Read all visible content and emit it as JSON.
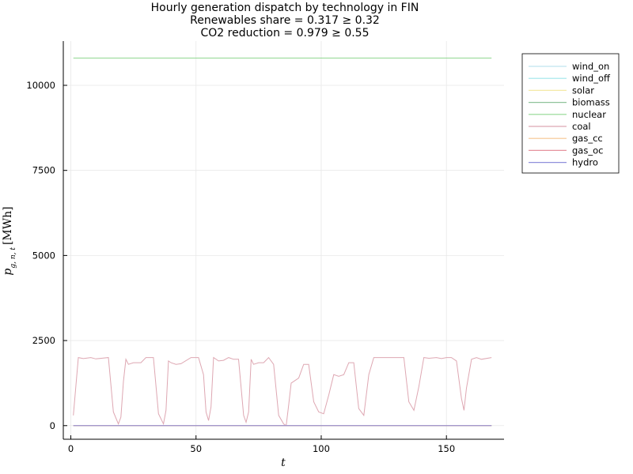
{
  "chart_data": {
    "type": "line",
    "title": "Hourly generation dispatch by technology in FIN",
    "subtitle_lines": [
      "Renewables share = 0.317 ≥ 0.32",
      "CO2 reduction = 0.979 ≥ 0.55"
    ],
    "xlabel": "t",
    "ylabel": {
      "symbol": "p",
      "subscript": "g, n, t",
      "unit": "[MWh]"
    },
    "xlim": [
      -3,
      173
    ],
    "ylim": [
      -400,
      11300
    ],
    "xticks": [
      0,
      50,
      100,
      150
    ],
    "yticks": [
      0,
      2500,
      5000,
      7500,
      10000
    ],
    "grid": true,
    "legend_position": "top-right outside",
    "series": [
      {
        "name": "wind_on",
        "color": "#bfe3ef",
        "x": [
          1,
          168
        ],
        "values": [
          0,
          0
        ]
      },
      {
        "name": "wind_off",
        "color": "#9fe6ea",
        "x": [
          1,
          168
        ],
        "values": [
          0,
          0
        ]
      },
      {
        "name": "solar",
        "color": "#f4e9a6",
        "x": [
          1,
          168
        ],
        "values": [
          0,
          0
        ]
      },
      {
        "name": "biomass",
        "color": "#8fc39a",
        "x": [
          1,
          168
        ],
        "values": [
          0,
          0
        ]
      },
      {
        "name": "nuclear",
        "color": "#90d890",
        "x": [
          1,
          168
        ],
        "values": [
          10800,
          10800
        ]
      },
      {
        "name": "coal",
        "color": "#dea7b2",
        "x": [
          1,
          3,
          5,
          8,
          10,
          15,
          17,
          19,
          20,
          21,
          22,
          23,
          25,
          28,
          30,
          33,
          35,
          37,
          38,
          39,
          40,
          42,
          44,
          48,
          51,
          53,
          54,
          55,
          56,
          57,
          59,
          61,
          63,
          65,
          67,
          69,
          70,
          71,
          72,
          73,
          75,
          77,
          79,
          81,
          83,
          85,
          86,
          87,
          88,
          89,
          91,
          93,
          95,
          97,
          99,
          101,
          103,
          105,
          107,
          109,
          111,
          113,
          115,
          117,
          119,
          121,
          123,
          125,
          129,
          133,
          135,
          137,
          139,
          141,
          143,
          146,
          148,
          150,
          152,
          154,
          156,
          157,
          158,
          160,
          162,
          164,
          168
        ],
        "values": [
          300,
          2000,
          1970,
          2000,
          1960,
          2000,
          400,
          50,
          250,
          1300,
          1950,
          1800,
          1850,
          1850,
          2000,
          2000,
          350,
          50,
          450,
          1900,
          1850,
          1800,
          1820,
          2000,
          2000,
          1500,
          400,
          150,
          550,
          2000,
          1900,
          1920,
          2000,
          1950,
          1950,
          300,
          100,
          400,
          1950,
          1800,
          1850,
          1850,
          2000,
          1800,
          300,
          50,
          0,
          600,
          1250,
          1300,
          1400,
          1800,
          1800,
          700,
          400,
          350,
          900,
          1500,
          1450,
          1500,
          1850,
          1850,
          500,
          300,
          1500,
          2000,
          2000,
          2000,
          2000,
          2000,
          700,
          450,
          1150,
          2000,
          1980,
          2000,
          1970,
          2000,
          2000,
          1900,
          800,
          450,
          1100,
          1950,
          2000,
          1950,
          2000
        ]
      },
      {
        "name": "gas_cc",
        "color": "#f6c690",
        "x": [
          1,
          168
        ],
        "values": [
          0,
          0
        ]
      },
      {
        "name": "gas_oc",
        "color": "#e6939e",
        "x": [
          1,
          168
        ],
        "values": [
          0,
          0
        ]
      },
      {
        "name": "hydro",
        "color": "#9090dc",
        "x": [
          1,
          168
        ],
        "values": [
          0,
          0
        ]
      }
    ]
  }
}
